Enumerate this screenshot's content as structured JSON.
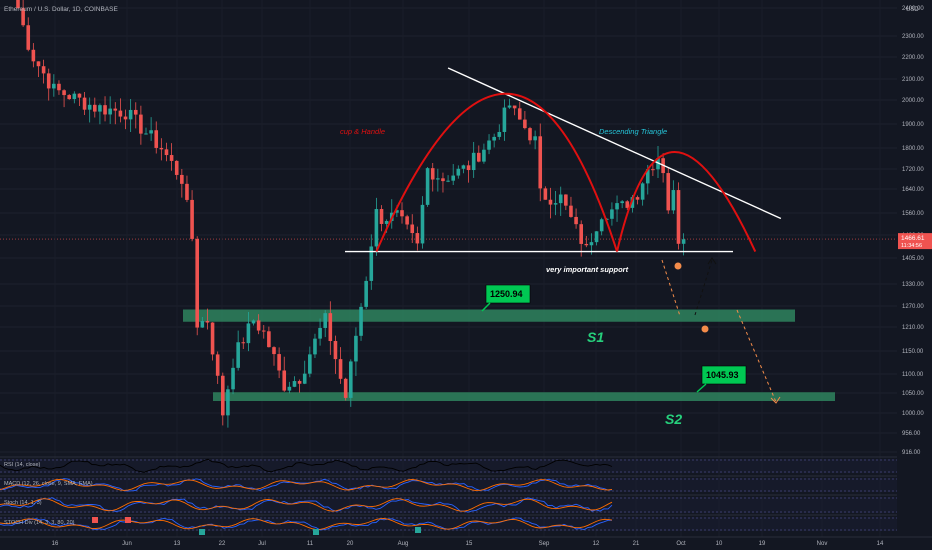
{
  "header": {
    "title": "Ethereum / U.S. Dollar, 1D, COINBASE"
  },
  "colors": {
    "background": "#131722",
    "up": "#26a69a",
    "down": "#ef5350",
    "zone": "#2e7d5b",
    "label_green": "#00c853",
    "pattern_red": "#e01010",
    "trend_white": "#ffffff",
    "s_label": "#26d07c",
    "projection": "#f48c4a",
    "projection_up": "#111111"
  },
  "y_axis": {
    "unit": "USD",
    "ticks": [
      2400,
      2300,
      2200,
      2100,
      2000,
      1900,
      1800,
      1720,
      1640,
      1560,
      1480,
      1405,
      1330,
      1270,
      1210,
      1150,
      1100,
      1050,
      1000,
      956,
      916
    ],
    "last_price": "1466.61",
    "countdown": "11:34:56"
  },
  "x_axis": {
    "labels": [
      "16",
      "Jun",
      "13",
      "22",
      "Jul",
      "11",
      "20",
      "Aug",
      "15",
      "Sep",
      "12",
      "21",
      "Oct",
      "10",
      "19",
      "Nov",
      "14"
    ]
  },
  "chart_data": {
    "type": "candlestick",
    "x_range": [
      "2022-05-09",
      "2022-11-18"
    ],
    "y_range": [
      916,
      2430
    ],
    "last_close": 1466.61,
    "anchors": [
      {
        "date": "2022-05-09",
        "close": 2400
      },
      {
        "date": "2022-05-12",
        "close": 2200
      },
      {
        "date": "2022-05-16",
        "close": 2050
      },
      {
        "date": "2022-05-24",
        "close": 1970
      },
      {
        "date": "2022-05-30",
        "close": 1950
      },
      {
        "date": "2022-06-06",
        "close": 1800
      },
      {
        "date": "2022-06-10",
        "close": 1680
      },
      {
        "date": "2022-06-12",
        "close": 1470
      },
      {
        "date": "2022-06-13",
        "close": 1220
      },
      {
        "date": "2022-06-15",
        "close": 1230
      },
      {
        "date": "2022-06-17",
        "close": 1085
      },
      {
        "date": "2022-06-18",
        "close": 1000
      },
      {
        "date": "2022-06-20",
        "close": 1130
      },
      {
        "date": "2022-06-24",
        "close": 1230
      },
      {
        "date": "2022-06-26",
        "close": 1195
      },
      {
        "date": "2022-06-30",
        "close": 1070
      },
      {
        "date": "2022-07-03",
        "close": 1090
      },
      {
        "date": "2022-07-08",
        "close": 1230
      },
      {
        "date": "2022-07-12",
        "close": 1040
      },
      {
        "date": "2022-07-14",
        "close": 1190
      },
      {
        "date": "2022-07-16",
        "close": 1350
      },
      {
        "date": "2022-07-18",
        "close": 1560
      },
      {
        "date": "2022-07-19",
        "close": 1540
      },
      {
        "date": "2022-07-22",
        "close": 1550
      },
      {
        "date": "2022-07-26",
        "close": 1440
      },
      {
        "date": "2022-07-28",
        "close": 1720
      },
      {
        "date": "2022-07-31",
        "close": 1680
      },
      {
        "date": "2022-08-05",
        "close": 1730
      },
      {
        "date": "2022-08-10",
        "close": 1850
      },
      {
        "date": "2022-08-13",
        "close": 1980
      },
      {
        "date": "2022-08-14",
        "close": 1940
      },
      {
        "date": "2022-08-18",
        "close": 1830
      },
      {
        "date": "2022-08-19",
        "close": 1620
      },
      {
        "date": "2022-08-23",
        "close": 1610
      },
      {
        "date": "2022-08-26",
        "close": 1500
      },
      {
        "date": "2022-08-28",
        "close": 1430
      },
      {
        "date": "2022-08-31",
        "close": 1560
      },
      {
        "date": "2022-09-04",
        "close": 1580
      },
      {
        "date": "2022-09-07",
        "close": 1630
      },
      {
        "date": "2022-09-09",
        "close": 1720
      },
      {
        "date": "2022-09-11",
        "close": 1770
      },
      {
        "date": "2022-09-12",
        "close": 1720
      },
      {
        "date": "2022-09-13",
        "close": 1580
      },
      {
        "date": "2022-09-14",
        "close": 1620
      },
      {
        "date": "2022-09-15",
        "close": 1470
      },
      {
        "date": "2022-09-16",
        "close": 1466
      }
    ],
    "annotations": {
      "cup_handle_label": "cup & Handle",
      "descending_triangle_label": "Descending Triangle",
      "support_label": "very important support",
      "s1_label": "S1",
      "s2_label": "S2",
      "s1_price": "1250.94",
      "s2_price": "1045.93",
      "support_level": 1426,
      "trendline": [
        [
          "2022-08-01",
          2150
        ],
        [
          "2022-10-05",
          1540
        ]
      ],
      "s1_zone": [
        1225,
        1260
      ],
      "s2_zone": [
        1030,
        1052
      ],
      "cup": {
        "start": "2022-07-18",
        "peak": "2022-08-14",
        "peak_value": 2030,
        "end": "2022-09-03"
      },
      "handle": {
        "start": "2022-09-03",
        "peak": "2022-09-12",
        "peak_value": 1785,
        "end": "2022-09-30"
      }
    }
  },
  "indicators": [
    {
      "label": "RSI (14, close)"
    },
    {
      "label": "MACD (12, 26, close, 9, SMA, EMA)",
      "value": "0.00"
    },
    {
      "label": "Stoch (14, 1, 3)",
      "value": "0.00"
    },
    {
      "label": "STOCH Div (14, 3, 3, 80, 20)",
      "value": "0.00"
    }
  ]
}
